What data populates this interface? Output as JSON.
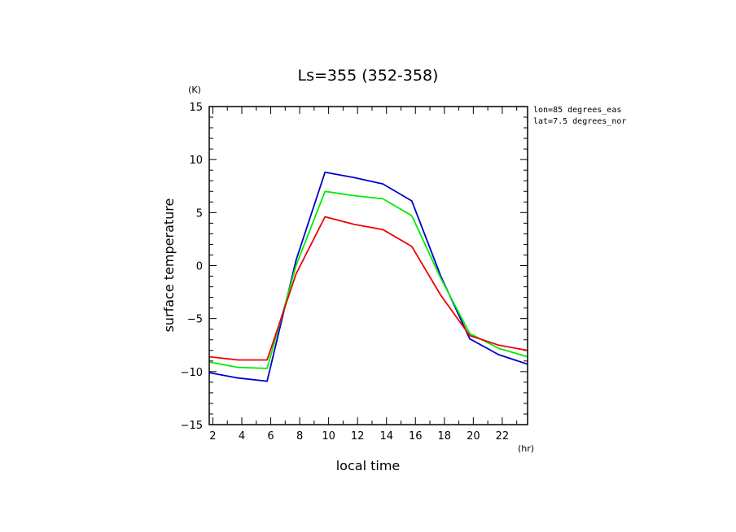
{
  "chart_data": {
    "type": "line",
    "title": "Ls=355 (352-358)",
    "xlabel": "local time",
    "ylabel": "surface temperature",
    "x_unit": "(hr)",
    "y_unit": "(K)",
    "annotations": [
      "lon=85 degrees_eas",
      "lat=7.5 degrees_nor"
    ],
    "xlim": [
      1.75,
      23.75
    ],
    "ylim": [
      -15,
      15
    ],
    "x_ticks": [
      2,
      4,
      6,
      8,
      10,
      12,
      14,
      16,
      18,
      20,
      22
    ],
    "y_ticks": [
      -15,
      -10,
      -5,
      0,
      5,
      10,
      15
    ],
    "grid": false,
    "x": [
      1.75,
      3.75,
      5.75,
      7.75,
      9.75,
      11.75,
      13.75,
      15.75,
      17.75,
      19.75,
      21.75,
      23.75
    ],
    "series": [
      {
        "color": "#0000cc",
        "values": [
          -10.1,
          -10.6,
          -10.9,
          0.5,
          8.8,
          8.3,
          7.7,
          6.1,
          -1.0,
          -6.9,
          -8.4,
          -9.3
        ]
      },
      {
        "color": "#00ee00",
        "values": [
          -9.1,
          -9.6,
          -9.7,
          0.0,
          7.0,
          6.6,
          6.3,
          4.7,
          -1.2,
          -6.4,
          -7.8,
          -8.6
        ]
      },
      {
        "color": "#ee0000",
        "values": [
          -8.6,
          -8.9,
          -8.9,
          -0.8,
          4.6,
          3.9,
          3.4,
          1.8,
          -2.8,
          -6.6,
          -7.5,
          -8.0
        ]
      }
    ]
  }
}
